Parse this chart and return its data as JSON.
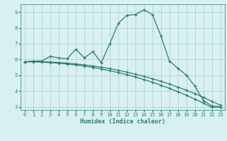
{
  "xlabel": "Humidex (Indice chaleur)",
  "bg_color": "#d8f0f0",
  "grid_color": "#aed4d4",
  "line_color": "#2e7d6e",
  "xlim": [
    -0.5,
    23.5
  ],
  "ylim": [
    2.8,
    9.5
  ],
  "yticks": [
    3,
    4,
    5,
    6,
    7,
    8,
    9
  ],
  "xticks": [
    0,
    1,
    2,
    3,
    4,
    5,
    6,
    7,
    8,
    9,
    10,
    11,
    12,
    13,
    14,
    15,
    16,
    17,
    18,
    19,
    20,
    21,
    22,
    23
  ],
  "series": [
    {
      "x": [
        0,
        1,
        2,
        3,
        4,
        5,
        6,
        7,
        8,
        9,
        10,
        11,
        12,
        13,
        14,
        15,
        16,
        17,
        18,
        19,
        20,
        21,
        22,
        23
      ],
      "y": [
        5.85,
        5.9,
        5.9,
        6.2,
        6.1,
        6.05,
        6.65,
        6.1,
        6.5,
        5.8,
        7.0,
        8.3,
        8.8,
        8.85,
        9.15,
        8.85,
        7.5,
        5.9,
        5.45,
        5.0,
        4.3,
        3.4,
        3.05,
        3.0
      ]
    },
    {
      "x": [
        0,
        1,
        2,
        3,
        4,
        5,
        6,
        7,
        8,
        9,
        10,
        11,
        12,
        13,
        14,
        15,
        16,
        17,
        18,
        19,
        20,
        21,
        22,
        23
      ],
      "y": [
        5.85,
        5.85,
        5.83,
        5.8,
        5.76,
        5.71,
        5.65,
        5.58,
        5.5,
        5.4,
        5.29,
        5.17,
        5.04,
        4.89,
        4.73,
        4.56,
        4.37,
        4.17,
        3.96,
        3.73,
        3.49,
        3.23,
        2.96,
        3.0
      ]
    },
    {
      "x": [
        0,
        1,
        2,
        3,
        4,
        5,
        6,
        7,
        8,
        9,
        10,
        11,
        12,
        13,
        14,
        15,
        16,
        17,
        18,
        19,
        20,
        21,
        22,
        23
      ],
      "y": [
        5.85,
        5.87,
        5.86,
        5.84,
        5.81,
        5.77,
        5.72,
        5.66,
        5.59,
        5.51,
        5.42,
        5.31,
        5.2,
        5.07,
        4.93,
        4.78,
        4.62,
        4.44,
        4.25,
        4.05,
        3.83,
        3.6,
        3.35,
        3.1
      ]
    }
  ]
}
